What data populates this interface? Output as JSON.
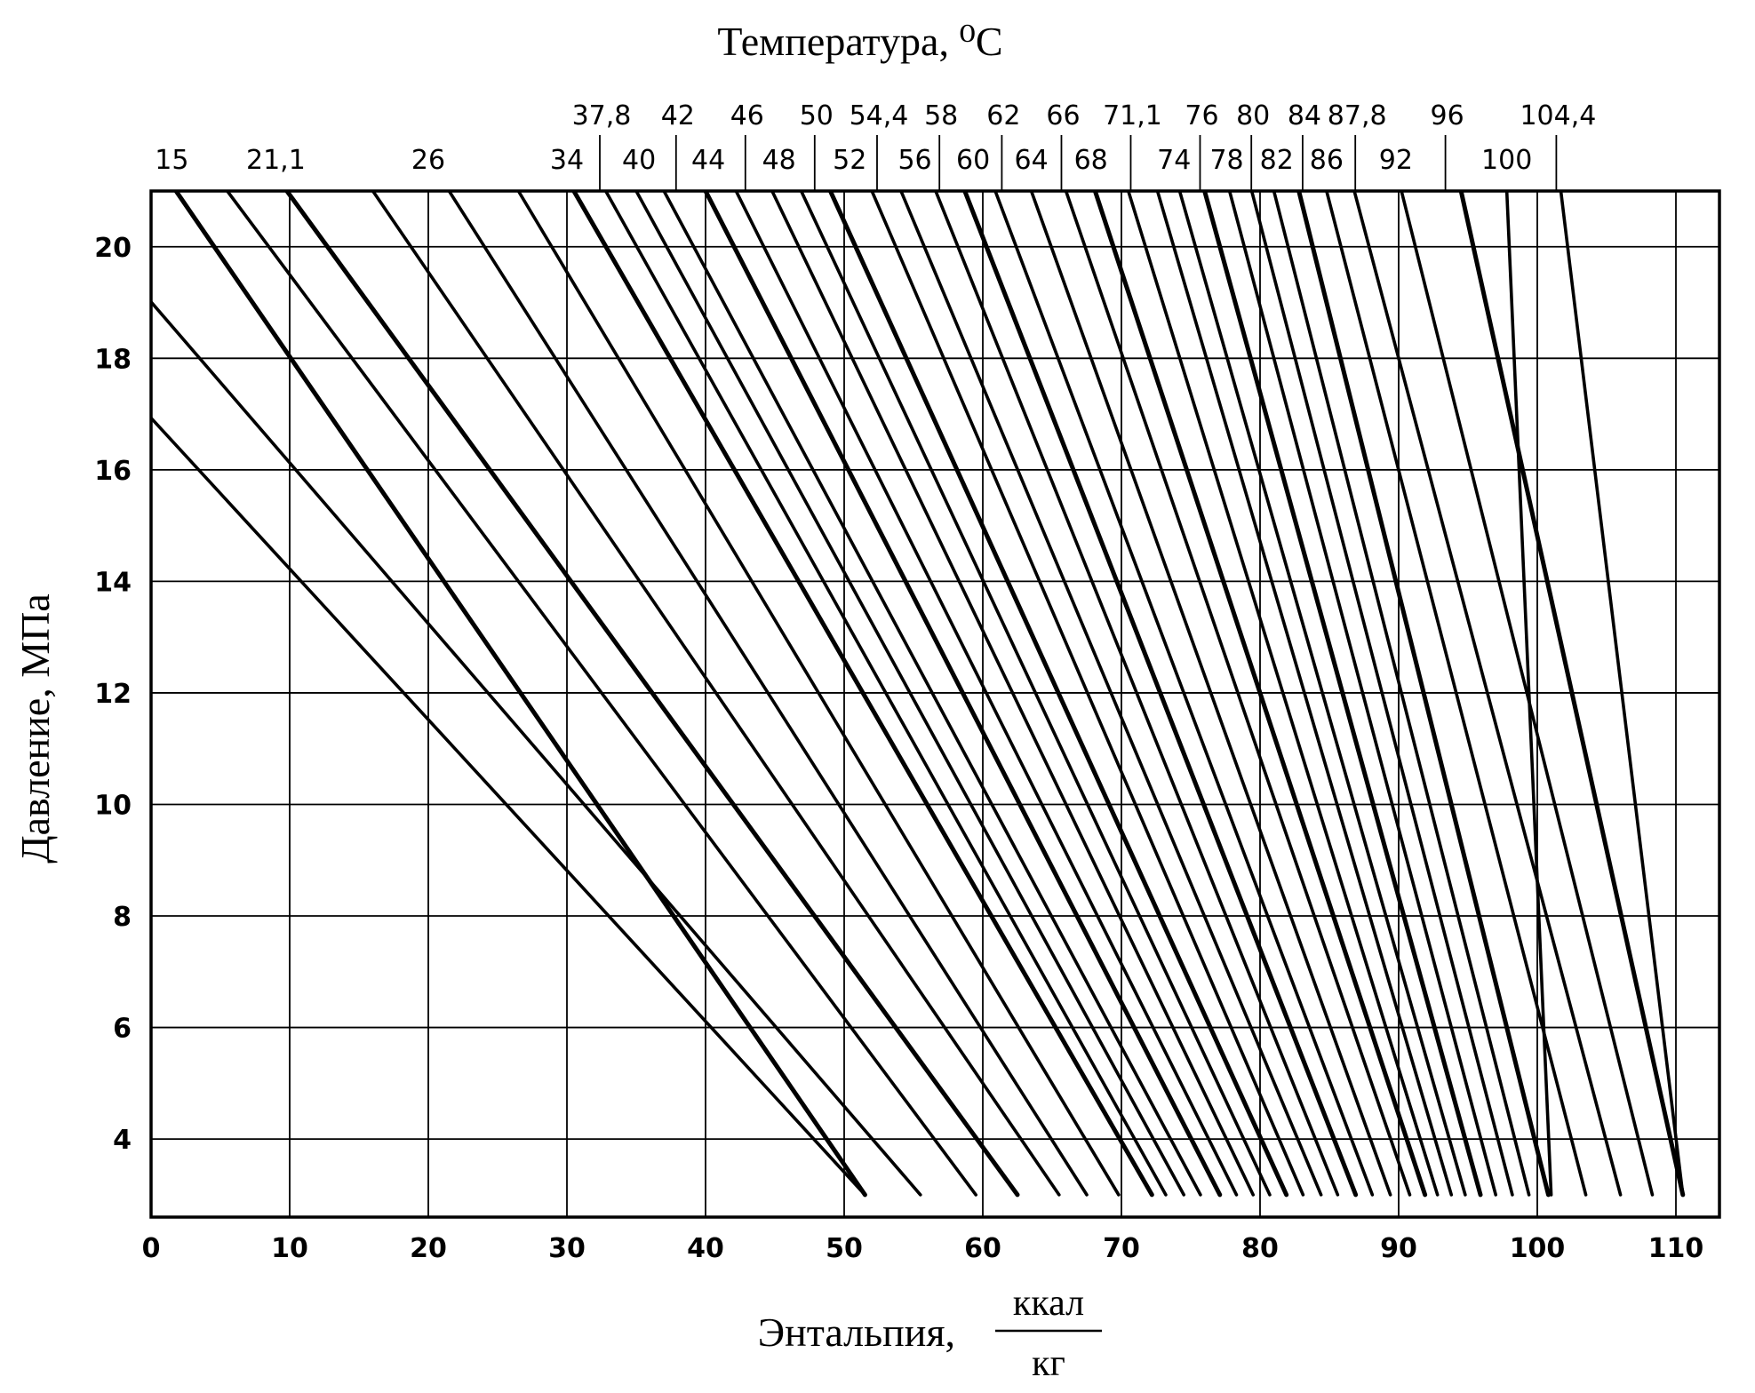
{
  "chart_data": {
    "type": "line",
    "title": "",
    "xlabel": "Энтальпия,",
    "xlabel_unit_numerator": "ккал",
    "xlabel_unit_denominator": "кг",
    "ylabel": "Давление, МПа",
    "top_axis_title": "Температура, ⁰С",
    "xlim": [
      0,
      112
    ],
    "ylim": [
      2.6,
      21
    ],
    "x_ticks": [
      0,
      10,
      20,
      30,
      40,
      50,
      60,
      70,
      80,
      90,
      100,
      110
    ],
    "y_ticks": [
      4,
      6,
      8,
      10,
      12,
      14,
      16,
      18,
      20
    ],
    "grid": true,
    "line_color": "#000000",
    "series": [
      {
        "name": "15",
        "label_row": "lower",
        "label_x": 1.5,
        "points": [
          [
            1.8,
            21
          ],
          [
            51.5,
            3
          ]
        ]
      },
      {
        "name": "21,1",
        "label_row": "lower",
        "label_x": 9,
        "points": [
          [
            -1,
            19.3
          ],
          [
            55.5,
            3
          ]
        ]
      },
      {
        "name": "26",
        "label_row": "lower",
        "label_x": 20,
        "points": [
          [
            -1,
            17.2
          ],
          [
            51.5,
            3
          ]
        ]
      },
      {
        "name": "34",
        "label_row": "lower",
        "label_x": 30,
        "points": [
          [
            5.5,
            21
          ],
          [
            59.5,
            3
          ]
        ]
      },
      {
        "name": "37,8",
        "label_row": "upper",
        "label_x": 32.5,
        "points": [
          [
            9.8,
            21
          ],
          [
            62.5,
            3
          ]
        ]
      },
      {
        "name": "40",
        "label_row": "lower",
        "label_x": 35.2,
        "points": [
          [
            16,
            21
          ],
          [
            65.5,
            3
          ]
        ]
      },
      {
        "name": "42",
        "label_row": "upper",
        "label_x": 38,
        "points": [
          [
            21.5,
            21
          ],
          [
            67.5,
            3
          ]
        ]
      },
      {
        "name": "44",
        "label_row": "lower",
        "label_x": 40.2,
        "points": [
          [
            26.5,
            21
          ],
          [
            69.8,
            3
          ]
        ]
      },
      {
        "name": "46",
        "label_row": "upper",
        "label_x": 43,
        "points": [
          [
            30.5,
            21
          ],
          [
            72.2,
            3
          ]
        ]
      },
      {
        "name": "48",
        "label_row": "lower",
        "label_x": 45.3,
        "points": [
          [
            32.8,
            21
          ],
          [
            73.2,
            3
          ]
        ]
      },
      {
        "name": "50",
        "label_row": "upper",
        "label_x": 48,
        "points": [
          [
            35,
            21
          ],
          [
            74.5,
            3
          ]
        ]
      },
      {
        "name": "52",
        "label_row": "lower",
        "label_x": 50.4,
        "points": [
          [
            37,
            21
          ],
          [
            75.7,
            3
          ]
        ]
      },
      {
        "name": "54,4",
        "label_row": "upper",
        "label_x": 52.5,
        "points": [
          [
            40,
            21
          ],
          [
            77.1,
            3
          ]
        ]
      },
      {
        "name": "56",
        "label_row": "lower",
        "label_x": 55.1,
        "points": [
          [
            42.2,
            21
          ],
          [
            78.3,
            3
          ]
        ]
      },
      {
        "name": "58",
        "label_row": "upper",
        "label_x": 57,
        "points": [
          [
            44.8,
            21
          ],
          [
            79.5,
            3
          ]
        ]
      },
      {
        "name": "60",
        "label_row": "lower",
        "label_x": 59.3,
        "points": [
          [
            46.9,
            21
          ],
          [
            80.7,
            3
          ]
        ]
      },
      {
        "name": "62",
        "label_row": "upper",
        "label_x": 61.5,
        "points": [
          [
            49,
            21
          ],
          [
            81.9,
            3
          ]
        ]
      },
      {
        "name": "64",
        "label_row": "lower",
        "label_x": 63.5,
        "points": [
          [
            52,
            21
          ],
          [
            83.1,
            3
          ]
        ]
      },
      {
        "name": "66",
        "label_row": "upper",
        "label_x": 65.8,
        "points": [
          [
            54.1,
            21
          ],
          [
            84.4,
            3
          ]
        ]
      },
      {
        "name": "68",
        "label_row": "lower",
        "label_x": 67.8,
        "points": [
          [
            56.6,
            21
          ],
          [
            85.6,
            3
          ]
        ]
      },
      {
        "name": "71,1",
        "label_row": "upper",
        "label_x": 70.8,
        "points": [
          [
            58.7,
            21
          ],
          [
            86.9,
            3
          ]
        ]
      },
      {
        "name": "74",
        "label_row": "lower",
        "label_x": 73.8,
        "points": [
          [
            60.9,
            21
          ],
          [
            88.1,
            3
          ]
        ]
      },
      {
        "name": "76",
        "label_row": "upper",
        "label_x": 75.8,
        "points": [
          [
            63.5,
            21
          ],
          [
            89.4,
            3
          ]
        ]
      },
      {
        "name": "78",
        "label_row": "lower",
        "label_x": 77.6,
        "points": [
          [
            66,
            21
          ],
          [
            90.8,
            3
          ]
        ]
      },
      {
        "name": "80",
        "label_row": "upper",
        "label_x": 79.5,
        "points": [
          [
            68.1,
            21
          ],
          [
            91.9,
            3
          ]
        ]
      },
      {
        "name": "82",
        "label_row": "lower",
        "label_x": 81.2,
        "points": [
          [
            70.5,
            21
          ],
          [
            92.8,
            3
          ]
        ]
      },
      {
        "name": "84",
        "label_row": "upper",
        "label_x": 83.2,
        "points": [
          [
            72.6,
            21
          ],
          [
            93.8,
            3
          ]
        ]
      },
      {
        "name": "86",
        "label_row": "lower",
        "label_x": 84.8,
        "points": [
          [
            74.2,
            21
          ],
          [
            94.8,
            3
          ]
        ]
      },
      {
        "name": "87,8",
        "label_row": "upper",
        "label_x": 87,
        "points": [
          [
            76,
            21
          ],
          [
            95.9,
            3
          ]
        ]
      },
      {
        "name": "92",
        "label_row": "lower",
        "label_x": 89.8,
        "points": [
          [
            77.8,
            21
          ],
          [
            97,
            3
          ]
        ]
      },
      {
        "name": "96",
        "label_row": "upper",
        "label_x": 93.5,
        "points": [
          [
            79.4,
            21
          ],
          [
            98.2,
            3
          ]
        ]
      },
      {
        "name": "100",
        "label_row": "lower",
        "label_x": 97.8,
        "points": [
          [
            81,
            21
          ],
          [
            99.4,
            3
          ]
        ]
      },
      {
        "name": "104,4",
        "label_row": "upper",
        "label_x": 101.5,
        "points": [
          [
            82.8,
            21
          ],
          [
            100.8,
            3
          ]
        ]
      },
      {
        "points": [
          [
            84.8,
            21
          ],
          [
            103.5,
            3
          ]
        ]
      },
      {
        "points": [
          [
            86.8,
            21
          ],
          [
            106,
            3
          ]
        ]
      },
      {
        "points": [
          [
            90.2,
            21
          ],
          [
            108.3,
            3
          ]
        ]
      },
      {
        "points": [
          [
            94.5,
            21
          ],
          [
            110.5,
            3
          ]
        ]
      },
      {
        "points": [
          [
            97.8,
            21
          ],
          [
            101,
            3
          ]
        ]
      },
      {
        "points": [
          [
            101.7,
            21
          ],
          [
            110.5,
            3
          ]
        ]
      }
    ]
  }
}
